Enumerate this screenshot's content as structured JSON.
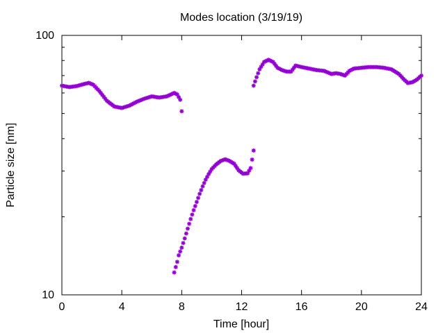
{
  "chart_data": {
    "type": "scatter",
    "title": "Modes location (3/19/19)",
    "xlabel": "Time [hour]",
    "ylabel": "Particle size [nm]",
    "xlim": [
      0,
      24
    ],
    "ylim": [
      10,
      100
    ],
    "yscale": "log",
    "grid": false,
    "legend": "none",
    "marker": "asterisk",
    "x_ticks": [
      {
        "value": 0,
        "label": "0"
      },
      {
        "value": 4,
        "label": "4"
      },
      {
        "value": 8,
        "label": "8"
      },
      {
        "value": 12,
        "label": "12"
      },
      {
        "value": 16,
        "label": "16"
      },
      {
        "value": 20,
        "label": "20"
      },
      {
        "value": 24,
        "label": "24"
      }
    ],
    "y_ticks": [
      {
        "value": 10,
        "label": "10"
      },
      {
        "value": 100,
        "label": "100"
      }
    ],
    "series": [
      {
        "color": "#9400d3",
        "segments": [
          {
            "x": [
              0,
              0.5,
              1.0,
              1.5,
              1.8,
              2.1,
              2.5,
              3.0,
              3.5,
              4.0,
              4.5,
              5.0,
              5.5,
              6.0,
              6.5,
              7.0,
              7.5,
              7.7,
              7.9,
              8.0
            ],
            "y": [
              64,
              63.2,
              63.8,
              65,
              65.6,
              64.5,
              61,
              56,
              53.2,
              52.5,
              53.6,
              55.5,
              57,
              58.2,
              57.6,
              58.2,
              60,
              59.2,
              56.5,
              51
            ]
          },
          {
            "x": [
              7.5,
              7.6,
              7.7,
              7.8,
              8.0,
              8.2,
              8.4,
              8.6,
              8.8,
              9.0,
              9.2,
              9.4,
              9.6,
              9.8,
              10.0,
              10.3,
              10.6,
              10.9,
              11.2,
              11.5,
              11.8,
              12.1,
              12.4,
              12.6,
              12.7
            ],
            "y": [
              12.2,
              12.8,
              13.4,
              14.2,
              15.2,
              16.5,
              18,
              19.6,
              21.2,
              22.8,
              24.5,
              26.2,
              27.8,
              29.2,
              30.5,
              31.8,
              32.8,
              33.3,
              32.8,
              32,
              30.2,
              29.3,
              29.4,
              30.8,
              33.2
            ]
          },
          {
            "x": [
              12.8,
              12.8,
              13.0,
              13.2,
              13.5,
              13.8,
              14.1,
              14.4,
              14.7,
              15.0,
              15.3,
              15.6,
              16.0,
              16.5,
              17.0,
              17.5,
              18.0,
              18.3,
              18.6,
              18.9,
              19.2,
              19.5,
              20.0,
              20.5,
              21.0,
              21.5,
              22.0,
              22.5,
              22.8,
              23.1,
              23.4,
              23.7,
              24.0
            ],
            "y": [
              36,
              64,
              69,
              74,
              79,
              80.5,
              79,
              75,
              73.5,
              72.5,
              72.5,
              76.5,
              75.5,
              74.5,
              73.5,
              73,
              71,
              71.5,
              71,
              70,
              73,
              74.5,
              75,
              75.5,
              75.5,
              75,
              74,
              71,
              68,
              65.5,
              66,
              67.5,
              70
            ]
          }
        ]
      }
    ]
  }
}
